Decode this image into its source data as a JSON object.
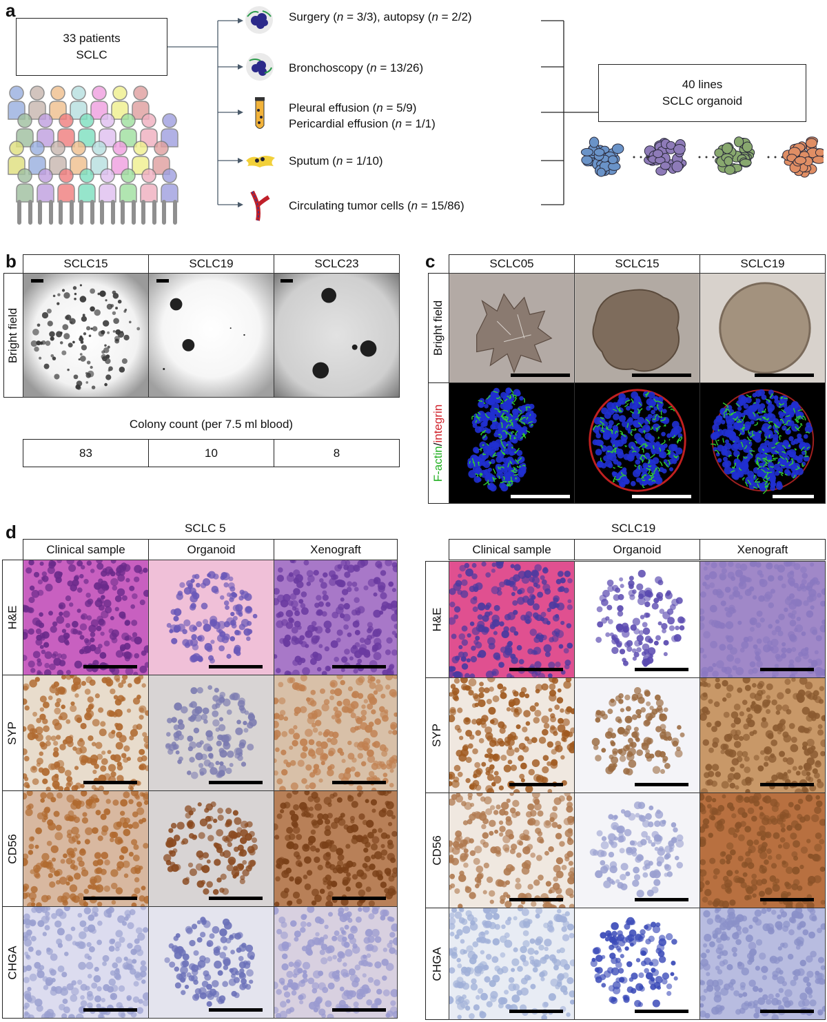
{
  "panel_a": {
    "label": "a",
    "patients_line1": "33 patients",
    "patients_line2": "SCLC",
    "sources": [
      {
        "text_pre": "Surgery (",
        "n1": "n",
        "v1": " = 3/3), autopsy (",
        "n2": "n",
        "v2": " = 2/2)",
        "icon": "tissue-icon"
      },
      {
        "text_pre": "Bronchoscopy (",
        "n1": "n",
        "v1": " = 13/26)",
        "n2": "",
        "v2": "",
        "icon": "tissue-icon"
      },
      {
        "text_pre": "Pleural effusion (",
        "n1": "n",
        "v1": " = 5/9)",
        "n2": "",
        "v2": "",
        "icon": "tube-icon"
      },
      {
        "text_pre": "Pericardial effusion (",
        "n1": "n",
        "v1": " = 1/1)",
        "n2": "",
        "v2": "",
        "icon": ""
      },
      {
        "text_pre": "Sputum (",
        "n1": "n",
        "v1": " = 1/10)",
        "n2": "",
        "v2": "",
        "icon": "sputum-icon"
      },
      {
        "text_pre": "Circulating tumor cells (",
        "n1": "n",
        "v1": " = 15/86)",
        "n2": "",
        "v2": "",
        "icon": "blood-vessel-icon"
      }
    ],
    "result_line1": "40 lines",
    "result_line2": "SCLC organoid",
    "organoid_colors": [
      "#6a93c8",
      "#8e7bb8",
      "#88a86e",
      "#e08e64"
    ]
  },
  "panel_b": {
    "label": "b",
    "columns": [
      "SCLC15",
      "SCLC19",
      "SCLC23"
    ],
    "row_label": "Bright field",
    "count_title": "Colony count (per 7.5 ml blood)",
    "counts": [
      "83",
      "10",
      "8"
    ]
  },
  "panel_c": {
    "label": "c",
    "columns": [
      "SCLC05",
      "SCLC15",
      "SCLC19"
    ],
    "row1_label": "Bright field",
    "row2_label_green": "F-actin",
    "row2_label_sep": "/",
    "row2_label_red": "integrin"
  },
  "panel_d": {
    "label": "d",
    "left_title": "SCLC 5",
    "right_title": "SCLC19",
    "columns": [
      "Clinical sample",
      "Organoid",
      "Xenograft"
    ],
    "rows": [
      "H&E",
      "SYP",
      "CD56",
      "CHGA"
    ]
  }
}
